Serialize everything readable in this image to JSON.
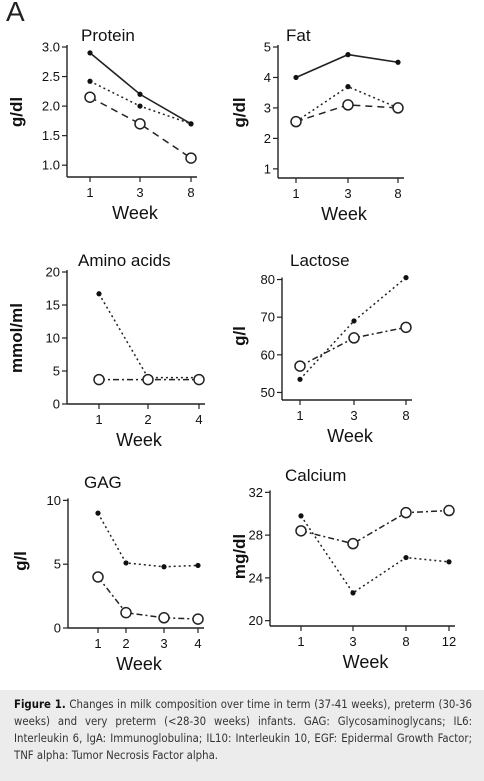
{
  "panel_letter": "A",
  "caption": {
    "label": "Figure 1.",
    "text": "Changes in milk composition over time in term (37-41 weeks), preterm (30-36 weeks) and very preterm (<28-30 weeks) infants. GAG: Glycosaminoglycans; IL6: Interleukin 6, IgA: Immunoglobulina; IL10: Interleukin 10, EGF: Epidermal Growth Factor; TNF alpha: Tumor Necrosis Factor alpha."
  },
  "chart_data": [
    {
      "type": "line",
      "title": "Protein",
      "ylabel": "g/dl",
      "xlabel": "Week",
      "categories": [
        "1",
        "3",
        "8"
      ],
      "ylim": [
        0.8,
        3.0
      ],
      "yticks": [
        "1.0",
        "1.5",
        "2.0",
        "2.5",
        "3.0"
      ],
      "series": [
        {
          "style": "solid",
          "marker": "dot",
          "values": [
            2.9,
            2.2,
            1.7
          ]
        },
        {
          "style": "dotted",
          "marker": "dot",
          "values": [
            2.42,
            2.0,
            1.7
          ]
        },
        {
          "style": "dashed",
          "marker": "circle",
          "values": [
            2.15,
            1.7,
            1.12
          ]
        }
      ]
    },
    {
      "type": "line",
      "title": "Fat",
      "ylabel": "g/dl",
      "xlabel": "Week",
      "categories": [
        "1",
        "3",
        "8"
      ],
      "ylim": [
        0.7,
        5.0
      ],
      "yticks": [
        "1",
        "2",
        "3",
        "4",
        "5"
      ],
      "series": [
        {
          "style": "solid",
          "marker": "dot",
          "values": [
            4.0,
            4.75,
            4.5
          ]
        },
        {
          "style": "dotted",
          "marker": "dot",
          "values": [
            2.55,
            3.7,
            3.0
          ]
        },
        {
          "style": "dashed",
          "marker": "circle",
          "values": [
            2.55,
            3.1,
            3.0
          ]
        }
      ]
    },
    {
      "type": "line",
      "title": "Amino acids",
      "ylabel": "mmol/ml",
      "xlabel": "Week",
      "categories": [
        "1",
        "2",
        "4"
      ],
      "ylim": [
        0,
        20
      ],
      "yticks": [
        "0",
        "5",
        "10",
        "15",
        "20"
      ],
      "series": [
        {
          "style": "dotted",
          "marker": "dot",
          "values": [
            16.7,
            4.0,
            4.0
          ]
        },
        {
          "style": "dashdot",
          "marker": "circle",
          "values": [
            3.7,
            3.7,
            3.7
          ]
        }
      ]
    },
    {
      "type": "line",
      "title": "Lactose",
      "ylabel": "g/l",
      "xlabel": "Week",
      "categories": [
        "1",
        "3",
        "8"
      ],
      "ylim": [
        48,
        82
      ],
      "yticks": [
        "50",
        "60",
        "70",
        "80"
      ],
      "series": [
        {
          "style": "dotted",
          "marker": "dot",
          "values": [
            53.5,
            69,
            80.5
          ]
        },
        {
          "style": "dashdot",
          "marker": "circle",
          "values": [
            57,
            64.5,
            67.3
          ]
        }
      ]
    },
    {
      "type": "line",
      "title": "GAG",
      "ylabel": "g/l",
      "xlabel": "Week",
      "categories": [
        "1",
        "2",
        "3",
        "4"
      ],
      "ylim": [
        0,
        10.5
      ],
      "yticks": [
        "0",
        "5",
        "10"
      ],
      "series": [
        {
          "style": "dotted",
          "marker": "dot",
          "values": [
            9.0,
            5.1,
            4.8,
            4.9
          ]
        },
        {
          "style": "dashdot",
          "marker": "circle",
          "values": [
            4.0,
            1.2,
            0.8,
            0.7
          ]
        }
      ]
    },
    {
      "type": "line",
      "title": "Calcium",
      "ylabel": "mg/dl",
      "xlabel": "Week",
      "categories": [
        "1",
        "3",
        "8",
        "12"
      ],
      "ylim": [
        19.5,
        32.5
      ],
      "yticks": [
        "20",
        "24",
        "28",
        "32"
      ],
      "series": [
        {
          "style": "dotted",
          "marker": "dot",
          "values": [
            29.8,
            22.6,
            25.9,
            25.5
          ]
        },
        {
          "style": "dashdot",
          "marker": "circle",
          "values": [
            28.4,
            27.2,
            30.1,
            30.3
          ]
        }
      ]
    }
  ]
}
